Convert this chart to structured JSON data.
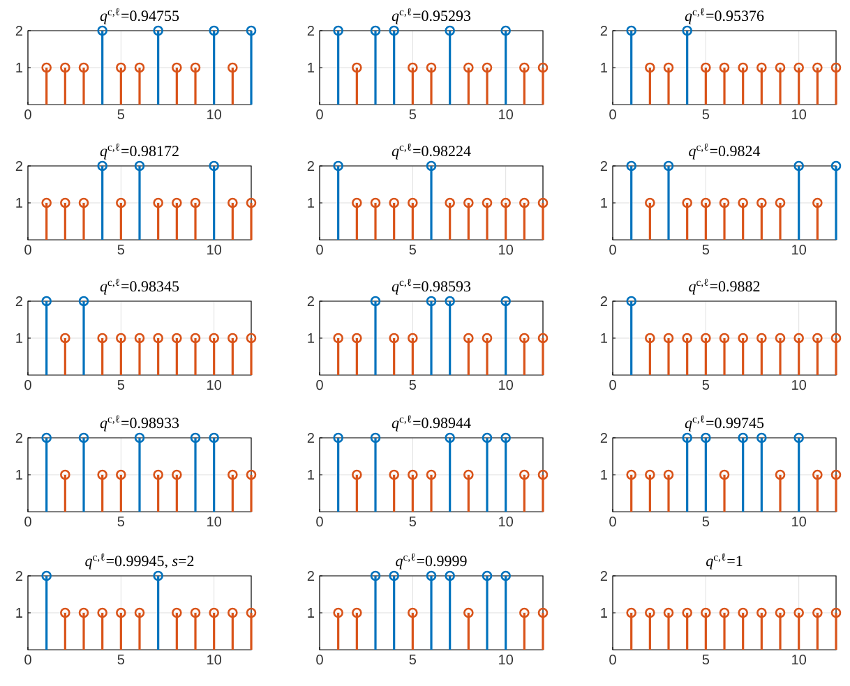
{
  "chart_data": [
    {
      "type": "lollipop",
      "title": "*q*$^{c,ℓ}$=0.94755",
      "x": [
        1,
        2,
        3,
        4,
        5,
        6,
        7,
        8,
        9,
        10,
        11,
        12
      ],
      "values": [
        1,
        1,
        1,
        2,
        1,
        1,
        2,
        1,
        1,
        2,
        1,
        2
      ],
      "colors": [
        "#d95319",
        "#d95319",
        "#d95319",
        "#0072bd",
        "#d95319",
        "#d95319",
        "#0072bd",
        "#d95319",
        "#d95319",
        "#0072bd",
        "#d95319",
        "#0072bd"
      ],
      "xlim": [
        0,
        12
      ],
      "ylim": [
        0,
        2
      ],
      "xticks": [
        0,
        5,
        10
      ],
      "yticks": [
        1,
        2
      ],
      "grid": true,
      "marker": "circle"
    },
    {
      "type": "lollipop",
      "title": "*q*$^{c,ℓ}$=0.95293",
      "x": [
        1,
        2,
        3,
        4,
        5,
        6,
        7,
        8,
        9,
        10,
        11,
        12
      ],
      "values": [
        2,
        1,
        2,
        2,
        1,
        1,
        2,
        1,
        1,
        2,
        1,
        1
      ],
      "colors": [
        "#0072bd",
        "#d95319",
        "#0072bd",
        "#0072bd",
        "#d95319",
        "#d95319",
        "#0072bd",
        "#d95319",
        "#d95319",
        "#0072bd",
        "#d95319",
        "#d95319"
      ],
      "xlim": [
        0,
        12
      ],
      "ylim": [
        0,
        2
      ],
      "xticks": [
        0,
        5,
        10
      ],
      "yticks": [
        1,
        2
      ],
      "grid": true,
      "marker": "circle"
    },
    {
      "type": "lollipop",
      "title": "*q*$^{c,ℓ}$=0.95376",
      "x": [
        1,
        2,
        3,
        4,
        5,
        6,
        7,
        8,
        9,
        10,
        11,
        12
      ],
      "values": [
        2,
        1,
        1,
        2,
        1,
        1,
        1,
        1,
        1,
        1,
        1,
        1
      ],
      "colors": [
        "#0072bd",
        "#d95319",
        "#d95319",
        "#0072bd",
        "#d95319",
        "#d95319",
        "#d95319",
        "#d95319",
        "#d95319",
        "#d95319",
        "#d95319",
        "#d95319"
      ],
      "xlim": [
        0,
        12
      ],
      "ylim": [
        0,
        2
      ],
      "xticks": [
        0,
        5,
        10
      ],
      "yticks": [
        1,
        2
      ],
      "grid": true,
      "marker": "circle"
    },
    {
      "type": "lollipop",
      "title": "*q*$^{c,ℓ}$=0.98172",
      "x": [
        1,
        2,
        3,
        4,
        5,
        6,
        7,
        8,
        9,
        10,
        11,
        12
      ],
      "values": [
        1,
        1,
        1,
        2,
        1,
        2,
        1,
        1,
        1,
        2,
        1,
        1
      ],
      "colors": [
        "#d95319",
        "#d95319",
        "#d95319",
        "#0072bd",
        "#d95319",
        "#0072bd",
        "#d95319",
        "#d95319",
        "#d95319",
        "#0072bd",
        "#d95319",
        "#d95319"
      ],
      "xlim": [
        0,
        12
      ],
      "ylim": [
        0,
        2
      ],
      "xticks": [
        0,
        5,
        10
      ],
      "yticks": [
        1,
        2
      ],
      "grid": true,
      "marker": "circle"
    },
    {
      "type": "lollipop",
      "title": "*q*$^{c,ℓ}$=0.98224",
      "x": [
        1,
        2,
        3,
        4,
        5,
        6,
        7,
        8,
        9,
        10,
        11,
        12
      ],
      "values": [
        2,
        1,
        1,
        1,
        1,
        2,
        1,
        1,
        1,
        1,
        1,
        1
      ],
      "colors": [
        "#0072bd",
        "#d95319",
        "#d95319",
        "#d95319",
        "#d95319",
        "#0072bd",
        "#d95319",
        "#d95319",
        "#d95319",
        "#d95319",
        "#d95319",
        "#d95319"
      ],
      "xlim": [
        0,
        12
      ],
      "ylim": [
        0,
        2
      ],
      "xticks": [
        0,
        5,
        10
      ],
      "yticks": [
        1,
        2
      ],
      "grid": true,
      "marker": "circle"
    },
    {
      "type": "lollipop",
      "title": "*q*$^{c,ℓ}$=0.9824",
      "x": [
        1,
        2,
        3,
        4,
        5,
        6,
        7,
        8,
        9,
        10,
        11,
        12
      ],
      "values": [
        2,
        1,
        2,
        1,
        1,
        1,
        1,
        1,
        1,
        2,
        1,
        2
      ],
      "colors": [
        "#0072bd",
        "#d95319",
        "#0072bd",
        "#d95319",
        "#d95319",
        "#d95319",
        "#d95319",
        "#d95319",
        "#d95319",
        "#0072bd",
        "#d95319",
        "#0072bd"
      ],
      "xlim": [
        0,
        12
      ],
      "ylim": [
        0,
        2
      ],
      "xticks": [
        0,
        5,
        10
      ],
      "yticks": [
        1,
        2
      ],
      "grid": true,
      "marker": "circle"
    },
    {
      "type": "lollipop",
      "title": "*q*$^{c,ℓ}$=0.98345",
      "x": [
        1,
        2,
        3,
        4,
        5,
        6,
        7,
        8,
        9,
        10,
        11,
        12
      ],
      "values": [
        2,
        1,
        2,
        1,
        1,
        1,
        1,
        1,
        1,
        1,
        1,
        1
      ],
      "colors": [
        "#0072bd",
        "#d95319",
        "#0072bd",
        "#d95319",
        "#d95319",
        "#d95319",
        "#d95319",
        "#d95319",
        "#d95319",
        "#d95319",
        "#d95319",
        "#d95319"
      ],
      "xlim": [
        0,
        12
      ],
      "ylim": [
        0,
        2
      ],
      "xticks": [
        0,
        5,
        10
      ],
      "yticks": [
        1,
        2
      ],
      "grid": true,
      "marker": "circle"
    },
    {
      "type": "lollipop",
      "title": "*q*$^{c,ℓ}$=0.98593",
      "x": [
        1,
        2,
        3,
        4,
        5,
        6,
        7,
        8,
        9,
        10,
        11,
        12
      ],
      "values": [
        1,
        1,
        2,
        1,
        1,
        2,
        2,
        1,
        1,
        2,
        1,
        1
      ],
      "colors": [
        "#d95319",
        "#d95319",
        "#0072bd",
        "#d95319",
        "#d95319",
        "#0072bd",
        "#0072bd",
        "#d95319",
        "#d95319",
        "#0072bd",
        "#d95319",
        "#d95319"
      ],
      "xlim": [
        0,
        12
      ],
      "ylim": [
        0,
        2
      ],
      "xticks": [
        0,
        5,
        10
      ],
      "yticks": [
        1,
        2
      ],
      "grid": true,
      "marker": "circle"
    },
    {
      "type": "lollipop",
      "title": "*q*$^{c,ℓ}$=0.9882",
      "x": [
        1,
        2,
        3,
        4,
        5,
        6,
        7,
        8,
        9,
        10,
        11,
        12
      ],
      "values": [
        2,
        1,
        1,
        1,
        1,
        1,
        1,
        1,
        1,
        1,
        1,
        1
      ],
      "colors": [
        "#0072bd",
        "#d95319",
        "#d95319",
        "#d95319",
        "#d95319",
        "#d95319",
        "#d95319",
        "#d95319",
        "#d95319",
        "#d95319",
        "#d95319",
        "#d95319"
      ],
      "xlim": [
        0,
        12
      ],
      "ylim": [
        0,
        2
      ],
      "xticks": [
        0,
        5,
        10
      ],
      "yticks": [
        1,
        2
      ],
      "grid": true,
      "marker": "circle"
    },
    {
      "type": "lollipop",
      "title": "*q*$^{c,ℓ}$=0.98933",
      "x": [
        1,
        2,
        3,
        4,
        5,
        6,
        7,
        8,
        9,
        10,
        11,
        12
      ],
      "values": [
        2,
        1,
        2,
        1,
        1,
        2,
        1,
        1,
        2,
        2,
        1,
        1
      ],
      "colors": [
        "#0072bd",
        "#d95319",
        "#0072bd",
        "#d95319",
        "#d95319",
        "#0072bd",
        "#d95319",
        "#d95319",
        "#0072bd",
        "#0072bd",
        "#d95319",
        "#d95319"
      ],
      "xlim": [
        0,
        12
      ],
      "ylim": [
        0,
        2
      ],
      "xticks": [
        0,
        5,
        10
      ],
      "yticks": [
        1,
        2
      ],
      "grid": true,
      "marker": "circle"
    },
    {
      "type": "lollipop",
      "title": "*q*$^{c,ℓ}$=0.98944",
      "x": [
        1,
        2,
        3,
        4,
        5,
        6,
        7,
        8,
        9,
        10,
        11,
        12
      ],
      "values": [
        2,
        1,
        2,
        1,
        1,
        1,
        2,
        1,
        2,
        2,
        1,
        1
      ],
      "colors": [
        "#0072bd",
        "#d95319",
        "#0072bd",
        "#d95319",
        "#d95319",
        "#d95319",
        "#0072bd",
        "#d95319",
        "#0072bd",
        "#0072bd",
        "#d95319",
        "#d95319"
      ],
      "xlim": [
        0,
        12
      ],
      "ylim": [
        0,
        2
      ],
      "xticks": [
        0,
        5,
        10
      ],
      "yticks": [
        1,
        2
      ],
      "grid": true,
      "marker": "circle"
    },
    {
      "type": "lollipop",
      "title": "*q*$^{c,ℓ}$=0.99745",
      "x": [
        1,
        2,
        3,
        4,
        5,
        6,
        7,
        8,
        9,
        10,
        11,
        12
      ],
      "values": [
        1,
        1,
        1,
        2,
        2,
        1,
        2,
        2,
        1,
        2,
        1,
        1
      ],
      "colors": [
        "#d95319",
        "#d95319",
        "#d95319",
        "#0072bd",
        "#0072bd",
        "#d95319",
        "#0072bd",
        "#0072bd",
        "#d95319",
        "#0072bd",
        "#d95319",
        "#d95319"
      ],
      "xlim": [
        0,
        12
      ],
      "ylim": [
        0,
        2
      ],
      "xticks": [
        0,
        5,
        10
      ],
      "yticks": [
        1,
        2
      ],
      "grid": true,
      "marker": "circle"
    },
    {
      "type": "lollipop",
      "title": "*q*$^{c,ℓ}$=0.99945, *s*=2",
      "x": [
        1,
        2,
        3,
        4,
        5,
        6,
        7,
        8,
        9,
        10,
        11,
        12
      ],
      "values": [
        2,
        1,
        1,
        1,
        1,
        1,
        2,
        1,
        1,
        1,
        1,
        1
      ],
      "colors": [
        "#0072bd",
        "#d95319",
        "#d95319",
        "#d95319",
        "#d95319",
        "#d95319",
        "#0072bd",
        "#d95319",
        "#d95319",
        "#d95319",
        "#d95319",
        "#d95319"
      ],
      "xlim": [
        0,
        12
      ],
      "ylim": [
        0,
        2
      ],
      "xticks": [
        0,
        5,
        10
      ],
      "yticks": [
        1,
        2
      ],
      "grid": true,
      "marker": "circle"
    },
    {
      "type": "lollipop",
      "title": "*q*$^{c,ℓ}$=0.9999",
      "x": [
        1,
        2,
        3,
        4,
        5,
        6,
        7,
        8,
        9,
        10,
        11,
        12
      ],
      "values": [
        1,
        1,
        2,
        2,
        1,
        2,
        2,
        1,
        2,
        2,
        1,
        1
      ],
      "colors": [
        "#d95319",
        "#d95319",
        "#0072bd",
        "#0072bd",
        "#d95319",
        "#0072bd",
        "#0072bd",
        "#d95319",
        "#0072bd",
        "#0072bd",
        "#d95319",
        "#d95319"
      ],
      "xlim": [
        0,
        12
      ],
      "ylim": [
        0,
        2
      ],
      "xticks": [
        0,
        5,
        10
      ],
      "yticks": [
        1,
        2
      ],
      "grid": true,
      "marker": "circle"
    },
    {
      "type": "lollipop",
      "title": "*q*$^{c,ℓ}$=1",
      "x": [
        1,
        2,
        3,
        4,
        5,
        6,
        7,
        8,
        9,
        10,
        11,
        12
      ],
      "values": [
        1,
        1,
        1,
        1,
        1,
        1,
        1,
        1,
        1,
        1,
        1,
        1
      ],
      "colors": [
        "#d95319",
        "#d95319",
        "#d95319",
        "#d95319",
        "#d95319",
        "#d95319",
        "#d95319",
        "#d95319",
        "#d95319",
        "#d95319",
        "#d95319",
        "#d95319"
      ],
      "xlim": [
        0,
        12
      ],
      "ylim": [
        0,
        2
      ],
      "xticks": [
        0,
        5,
        10
      ],
      "yticks": [
        1,
        2
      ],
      "grid": true,
      "marker": "circle"
    }
  ]
}
